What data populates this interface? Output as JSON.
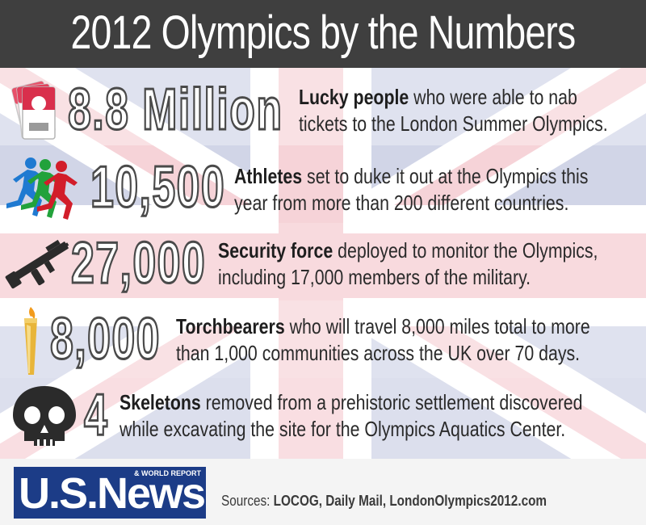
{
  "title": "2012 Olympics by the Numbers",
  "items": [
    {
      "icon": "tickets-icon",
      "number": "8.8 Million",
      "bold": "Lucky people",
      "line1_rest": " who were able to nab",
      "line2": "tickets to the London Summer Olympics."
    },
    {
      "icon": "runners-icon",
      "number": "10,500",
      "bold": "Athletes",
      "line1_rest": " set to duke it out at the Olympics this",
      "line2": "year from more than 200 different countries."
    },
    {
      "icon": "rifle-icon",
      "number": "27,000",
      "bold": "Security force",
      "line1_rest": " deployed to monitor the Olympics,",
      "line2": "including 17,000 members of the military."
    },
    {
      "icon": "torch-icon",
      "number": "8,000",
      "bold": "Torchbearers",
      "line1_rest": " who will travel 8,000 miles total to more",
      "line2": "than 1,000 communities across the UK over 70 days."
    },
    {
      "icon": "skull-icon",
      "number": "4",
      "bold": "Skeletons",
      "line1_rest": " removed from a prehistoric settlement discovered",
      "line2": "while excavating the site for the Olympics Aquatics Center."
    }
  ],
  "footer": {
    "logo_main": "U.S.News",
    "logo_sub": "& WORLD REPORT",
    "sources_label": "Sources:",
    "sources_list": "LOCOG, Daily Mail, LondonOlympics2012.com"
  },
  "colors": {
    "header": "#3f3f3f",
    "flag_blue": "#b9bfdb",
    "flag_red": "#f2bcc4",
    "logo_blue": "#1c3c87",
    "runner_blue": "#1f7ad1",
    "runner_green": "#22a23b",
    "runner_red": "#d21d2a"
  }
}
